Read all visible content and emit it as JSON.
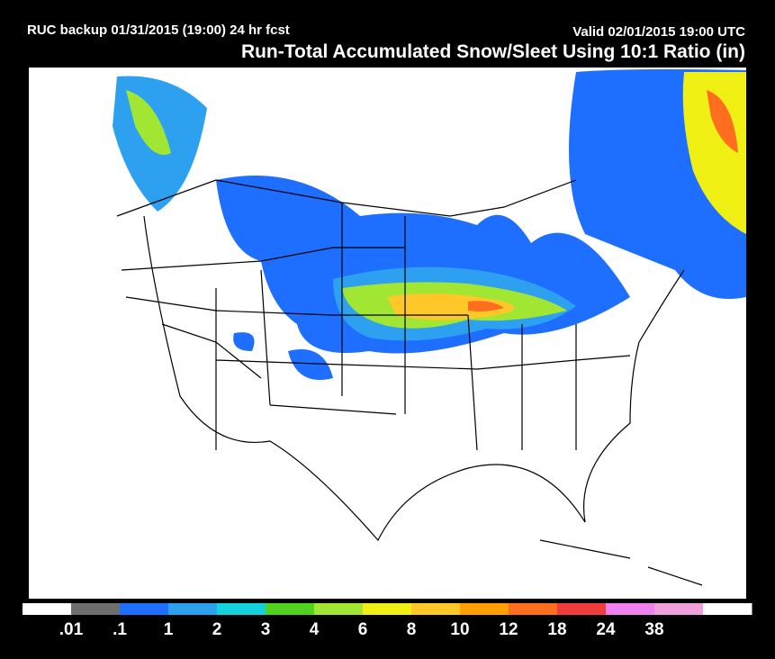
{
  "header": {
    "run": "RUC backup 01/31/2015 (19:00) 24 hr fcst",
    "valid": "Valid 02/01/2015 19:00 UTC",
    "title": "Run-Total Accumulated Snow/Sleet Using 10:1 Ratio (in)"
  },
  "legend": {
    "colors": [
      "#ffffff",
      "#6e6e6e",
      "#1e6eff",
      "#2ea0f0",
      "#14d2dc",
      "#50d21e",
      "#a0e632",
      "#f0f014",
      "#ffc828",
      "#ffa000",
      "#ff6e1e",
      "#f03c3c",
      "#f082f0",
      "#f0a0dc",
      "#ffffff"
    ],
    "labels": [
      ".01",
      ".1",
      "1",
      "2",
      "3",
      "4",
      "6",
      "8",
      "10",
      "12",
      "18",
      "24",
      "38"
    ]
  }
}
